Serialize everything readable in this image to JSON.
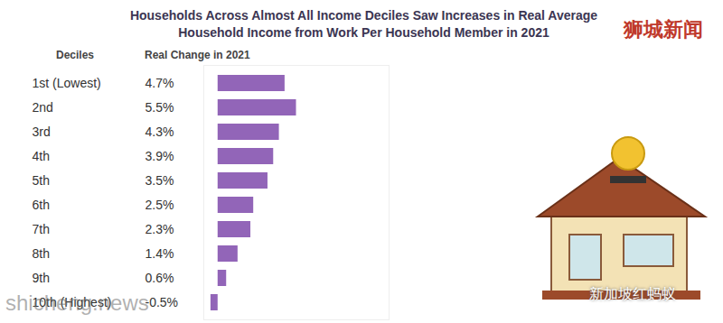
{
  "chart_data": {
    "type": "bar",
    "orientation": "horizontal",
    "title": "Households Across Almost All Income Deciles Saw Increases in Real Average Household Income from Work Per Household Member in 2021",
    "y_label": "Deciles",
    "x_label": "Real Change in 2021",
    "categories": [
      "1st (Lowest)",
      "2nd",
      "3rd",
      "4th",
      "5th",
      "6th",
      "7th",
      "8th",
      "9th",
      "10th (Highest)"
    ],
    "values": [
      4.7,
      5.5,
      4.3,
      3.9,
      3.5,
      2.5,
      2.3,
      1.4,
      0.6,
      -0.5
    ],
    "value_labels": [
      "4.7%",
      "5.5%",
      "4.3%",
      "3.9%",
      "3.5%",
      "2.5%",
      "2.3%",
      "1.4%",
      "0.6%",
      "-0.5%"
    ],
    "data_labels": true,
    "color": "#9265b8",
    "xlim": [
      -1,
      12
    ],
    "tick_labels": false,
    "grid": false,
    "annotations": [
      "狮城新闻",
      "shicheng.news",
      "新加坡红蚂蚁"
    ]
  }
}
